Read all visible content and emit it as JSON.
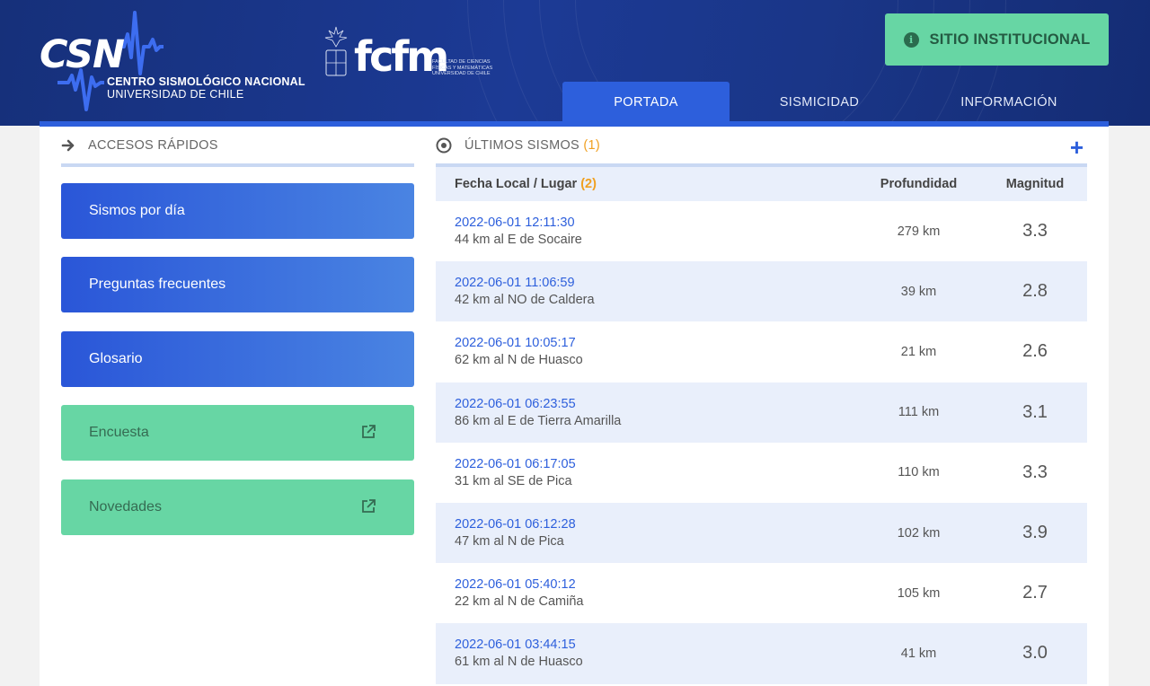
{
  "header": {
    "csn_abbr": "CSN",
    "csn_name_line1": "CENTRO SISMOLÓGICO NACIONAL",
    "csn_name_line2": "UNIVERSIDAD DE CHILE",
    "fcfm_logo_text": "fcfm",
    "fcfm_subtitle": "FACULTAD DE CIENCIAS FÍSICAS Y MATEMÁTICAS UNIVERSIDAD DE CHILE",
    "institutional_button": "SITIO INSTITUCIONAL",
    "nav": [
      {
        "label": "PORTADA",
        "active": true
      },
      {
        "label": "SISMICIDAD",
        "active": false
      },
      {
        "label": "INFORMACIÓN",
        "active": false
      }
    ]
  },
  "quick_access": {
    "title": "ACCESOS RÁPIDOS",
    "buttons": [
      {
        "label": "Sismos por día",
        "style": "blue",
        "external": false
      },
      {
        "label": "Preguntas frecuentes",
        "style": "blue",
        "external": false
      },
      {
        "label": "Glosario",
        "style": "blue",
        "external": false
      },
      {
        "label": "Encuesta",
        "style": "green",
        "external": true
      },
      {
        "label": "Novedades",
        "style": "green",
        "external": true
      }
    ]
  },
  "latest_quakes": {
    "title": "ÚLTIMOS SISMOS",
    "title_note": "(1)",
    "columns": {
      "place": "Fecha Local / Lugar",
      "place_note": "(2)",
      "depth": "Profundidad",
      "magnitude": "Magnitud"
    },
    "rows": [
      {
        "datetime": "2022-06-01 12:11:30",
        "place": "44 km al E de Socaire",
        "depth": "279 km",
        "magnitude": "3.3"
      },
      {
        "datetime": "2022-06-01 11:06:59",
        "place": "42 km al NO de Caldera",
        "depth": "39 km",
        "magnitude": "2.8"
      },
      {
        "datetime": "2022-06-01 10:05:17",
        "place": "62 km al N de Huasco",
        "depth": "21 km",
        "magnitude": "2.6"
      },
      {
        "datetime": "2022-06-01 06:23:55",
        "place": "86 km al E de Tierra Amarilla",
        "depth": "111 km",
        "magnitude": "3.1"
      },
      {
        "datetime": "2022-06-01 06:17:05",
        "place": "31 km al SE de Pica",
        "depth": "110 km",
        "magnitude": "3.3"
      },
      {
        "datetime": "2022-06-01 06:12:28",
        "place": "47 km al N de Pica",
        "depth": "102 km",
        "magnitude": "3.9"
      },
      {
        "datetime": "2022-06-01 05:40:12",
        "place": "22 km al N de Camiña",
        "depth": "105 km",
        "magnitude": "2.7"
      },
      {
        "datetime": "2022-06-01 03:44:15",
        "place": "61 km al N de Huasco",
        "depth": "41 km",
        "magnitude": "3.0"
      }
    ]
  },
  "colors": {
    "header_bg": "#1c3a95",
    "accent_blue": "#2d5fdc",
    "accent_green": "#67d6a4",
    "note_orange": "#f0a020",
    "row_alt": "#e9effb"
  }
}
